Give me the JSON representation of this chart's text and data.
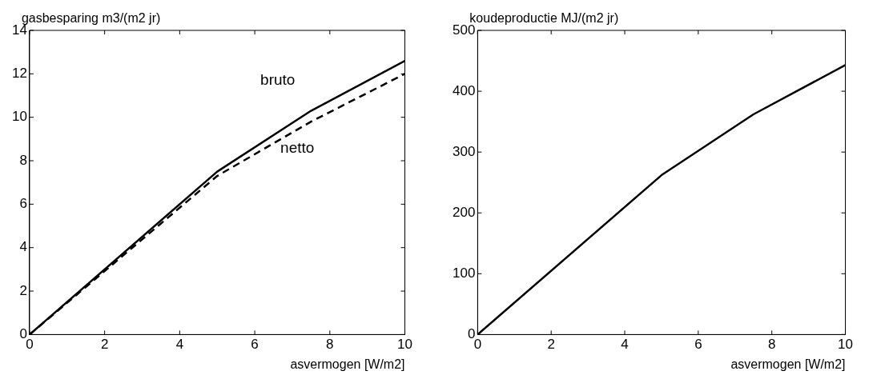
{
  "chart_data": [
    {
      "type": "line",
      "ylabel": "gasbesparing m3/(m2 jr)",
      "xlabel": "asvermogen [W/m2]",
      "x": [
        0,
        5,
        7.5,
        10
      ],
      "xlim": [
        0,
        10
      ],
      "xticks": [
        0,
        2,
        4,
        6,
        8,
        10
      ],
      "ylim": [
        0,
        14
      ],
      "yticks": [
        0,
        2,
        4,
        6,
        8,
        10,
        12,
        14
      ],
      "grid": false,
      "legend": false,
      "marker": "none",
      "series": [
        {
          "name": "bruto",
          "color": "#000000",
          "values": [
            0,
            7.5,
            10.3,
            12.6
          ],
          "line_style": "solid"
        },
        {
          "name": "netto",
          "color": "#000000",
          "values": [
            0,
            7.3,
            9.8,
            12.0
          ],
          "line_style": "dashed"
        }
      ]
    },
    {
      "type": "line",
      "ylabel": "koudeproductie MJ/(m2 jr)",
      "xlabel": "asvermogen [W/m2]",
      "x": [
        0,
        5,
        7.5,
        10
      ],
      "xlim": [
        0,
        10
      ],
      "xticks": [
        0,
        2,
        4,
        6,
        8,
        10
      ],
      "ylim": [
        0,
        500
      ],
      "yticks": [
        0,
        100,
        200,
        300,
        400,
        500
      ],
      "grid": false,
      "legend": false,
      "marker": "none",
      "series": [
        {
          "color": "#000000",
          "values": [
            0,
            262,
            362,
            443
          ],
          "line_style": "solid"
        }
      ]
    }
  ]
}
